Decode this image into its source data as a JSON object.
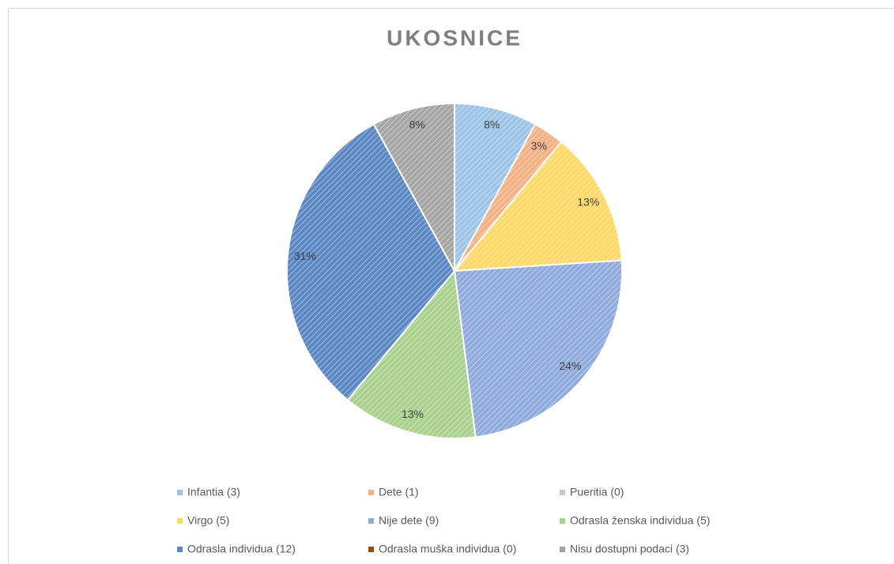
{
  "chart_data": {
    "type": "pie",
    "title": "UKOSNICE",
    "categories": [
      "Infantia (3)",
      "Dete (1)",
      "Pueritia (0)",
      "Virgo (5)",
      "Nije dete (9)",
      "Odrasla ženska individua (5)",
      "Odrasla individua (12)",
      "Odrasla muška individua (0)",
      "Nisu dostupni podaci (3)"
    ],
    "values": [
      8,
      3,
      0,
      13,
      24,
      13,
      31,
      0,
      8
    ],
    "value_labels": [
      "8%",
      "3%",
      null,
      "13%",
      "24%",
      "13%",
      "31%",
      null,
      "8%"
    ],
    "colors": [
      "#9dc3e6",
      "#f4b183",
      "#c9c9c9",
      "#ffd966",
      "#8faadc",
      "#a9d18e",
      "#5b87c4",
      "#9e480e",
      "#a5a5a5"
    ],
    "legend": "bottom"
  }
}
